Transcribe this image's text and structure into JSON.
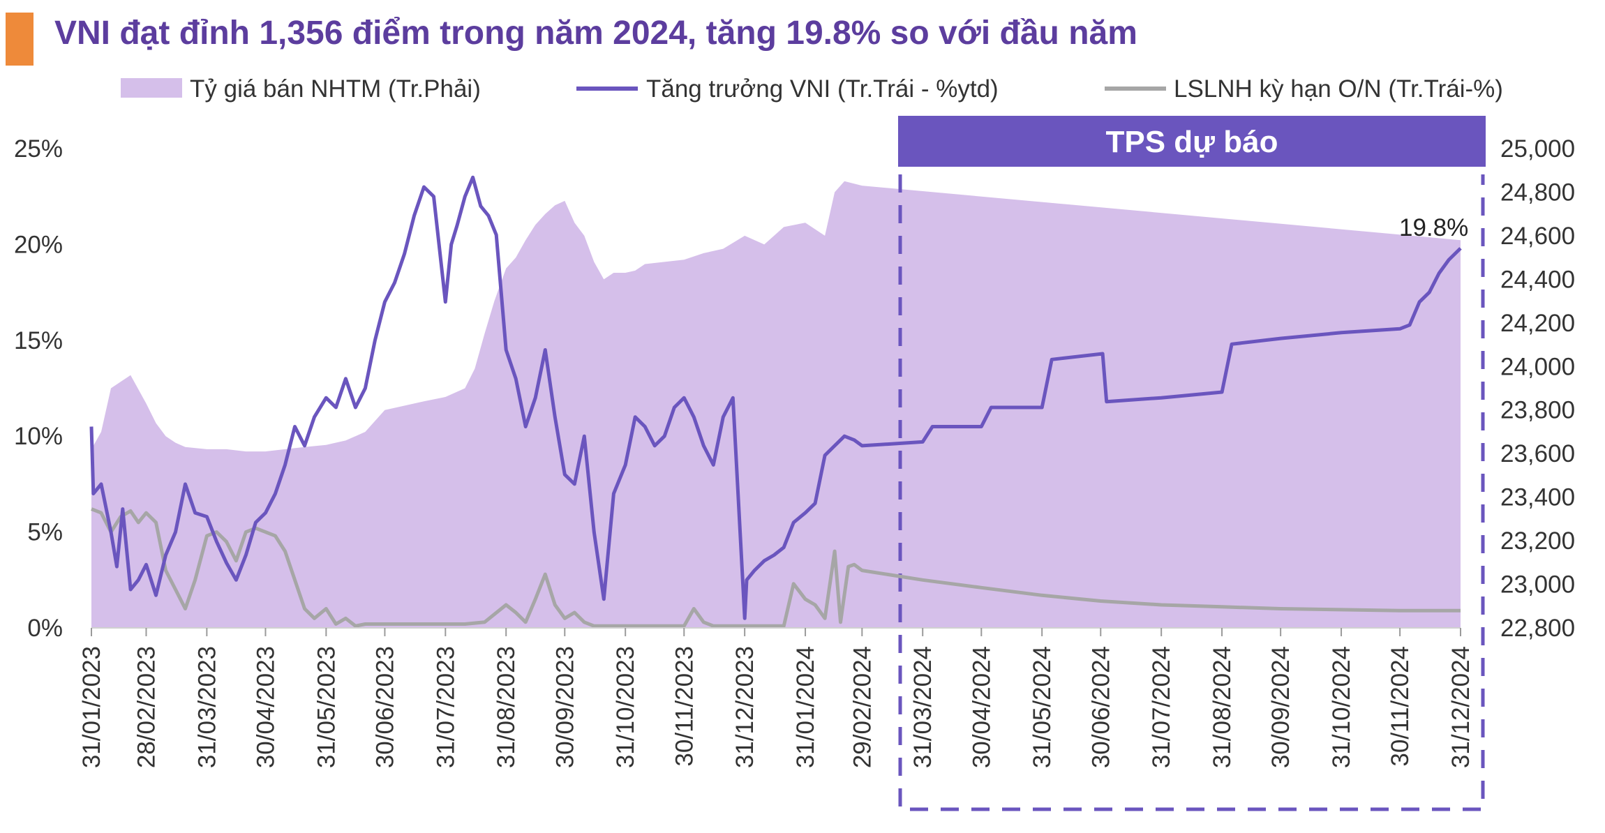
{
  "title": "VNI đạt đỉnh 1,356 điểm trong năm 2024, tăng 19.8% so với đầu năm",
  "colors": {
    "accent_bar": "#ee8a3a",
    "title": "#5c3d9e",
    "area": "#d5bfea",
    "vni_line": "#6a55be",
    "rate_line": "#a6a6a6",
    "forecast_box": "#6a55be"
  },
  "chart_data": {
    "type": "line",
    "legend": [
      {
        "name": "Tỷ giá bán NHTM (Tr.Phải)",
        "style": "area"
      },
      {
        "name": "Tăng trưởng VNI (Tr.Trái - %ytd)",
        "style": "line"
      },
      {
        "name": "LSLNH kỳ hạn O/N (Tr.Trái-%)",
        "style": "line"
      }
    ],
    "forecast_label": "TPS dự báo",
    "forecast_start": "15/02/2024",
    "annotation": "19.8%",
    "left_axis": {
      "ticks": [
        "0%",
        "5%",
        "10%",
        "15%",
        "20%",
        "25%"
      ],
      "values": [
        0,
        5,
        10,
        15,
        20,
        25
      ],
      "ylim": [
        0,
        25
      ]
    },
    "right_axis": {
      "ticks": [
        "22,800",
        "23,000",
        "23,200",
        "23,400",
        "23,600",
        "23,800",
        "24,000",
        "24,200",
        "24,400",
        "24,600",
        "24,800",
        "25,000"
      ],
      "values": [
        22800,
        23000,
        23200,
        23400,
        23600,
        23800,
        24000,
        24200,
        24400,
        24600,
        24800,
        25000
      ],
      "ylim": [
        22800,
        25000
      ]
    },
    "x_ticks": [
      "31/01/2023",
      "28/02/2023",
      "31/03/2023",
      "30/04/2023",
      "31/05/2023",
      "30/06/2023",
      "31/07/2023",
      "31/08/2023",
      "30/09/2023",
      "31/10/2023",
      "30/11/2023",
      "31/12/2023",
      "31/01/2024",
      "29/02/2024",
      "31/03/2024",
      "30/04/2024",
      "31/05/2024",
      "30/06/2024",
      "31/07/2024",
      "31/08/2024",
      "30/09/2024",
      "31/10/2024",
      "30/11/2024",
      "31/12/2024"
    ],
    "series": [
      {
        "name": "Tỷ giá bán NHTM (Tr.Phải)",
        "axis": "right",
        "x": [
          "31/01/2023",
          "05/02/2023",
          "10/02/2023",
          "15/02/2023",
          "20/02/2023",
          "28/02/2023",
          "05/03/2023",
          "10/03/2023",
          "15/03/2023",
          "20/03/2023",
          "31/03/2023",
          "10/04/2023",
          "20/04/2023",
          "30/04/2023",
          "10/05/2023",
          "20/05/2023",
          "31/05/2023",
          "10/06/2023",
          "20/06/2023",
          "30/06/2023",
          "10/07/2023",
          "20/07/2023",
          "31/07/2023",
          "10/08/2023",
          "15/08/2023",
          "20/08/2023",
          "25/08/2023",
          "31/08/2023",
          "05/09/2023",
          "10/09/2023",
          "15/09/2023",
          "20/09/2023",
          "25/09/2023",
          "30/09/2023",
          "05/10/2023",
          "10/10/2023",
          "15/10/2023",
          "20/10/2023",
          "25/10/2023",
          "31/10/2023",
          "05/11/2023",
          "10/11/2023",
          "20/11/2023",
          "30/11/2023",
          "10/12/2023",
          "20/12/2023",
          "31/12/2023",
          "10/01/2024",
          "20/01/2024",
          "31/01/2024",
          "10/02/2024",
          "15/02/2024",
          "20/02/2024",
          "29/02/2024",
          "31/12/2024"
        ],
        "values": [
          23620,
          23700,
          23900,
          23930,
          23960,
          23830,
          23740,
          23680,
          23650,
          23630,
          23620,
          23620,
          23610,
          23610,
          23620,
          23630,
          23640,
          23660,
          23700,
          23800,
          23820,
          23840,
          23860,
          23900,
          23990,
          24150,
          24300,
          24450,
          24500,
          24580,
          24650,
          24700,
          24740,
          24760,
          24660,
          24600,
          24480,
          24400,
          24430,
          24430,
          24440,
          24470,
          24480,
          24490,
          24520,
          24540,
          24600,
          24560,
          24640,
          24660,
          24600,
          24800,
          24850,
          24830,
          24580
        ]
      },
      {
        "name": "Tăng trưởng VNI (Tr.Trái - %ytd)",
        "axis": "left",
        "x": [
          "31/01/2023",
          "01/02/2023",
          "05/02/2023",
          "10/02/2023",
          "13/02/2023",
          "16/02/2023",
          "20/02/2023",
          "24/02/2023",
          "28/02/2023",
          "05/03/2023",
          "10/03/2023",
          "15/03/2023",
          "20/03/2023",
          "25/03/2023",
          "31/03/2023",
          "05/04/2023",
          "10/04/2023",
          "15/04/2023",
          "20/04/2023",
          "25/04/2023",
          "30/04/2023",
          "05/05/2023",
          "10/05/2023",
          "15/05/2023",
          "20/05/2023",
          "25/05/2023",
          "31/05/2023",
          "05/06/2023",
          "10/06/2023",
          "15/06/2023",
          "20/06/2023",
          "25/06/2023",
          "30/06/2023",
          "05/07/2023",
          "10/07/2023",
          "15/07/2023",
          "20/07/2023",
          "25/07/2023",
          "31/07/2023",
          "03/08/2023",
          "06/08/2023",
          "10/08/2023",
          "14/08/2023",
          "18/08/2023",
          "22/08/2023",
          "26/08/2023",
          "31/08/2023",
          "05/09/2023",
          "10/09/2023",
          "15/09/2023",
          "20/09/2023",
          "25/09/2023",
          "30/09/2023",
          "05/10/2023",
          "10/10/2023",
          "15/10/2023",
          "20/10/2023",
          "25/10/2023",
          "31/10/2023",
          "05/11/2023",
          "10/11/2023",
          "15/11/2023",
          "20/11/2023",
          "25/11/2023",
          "30/11/2023",
          "05/12/2023",
          "10/12/2023",
          "15/12/2023",
          "20/12/2023",
          "25/12/2023",
          "31/12/2023",
          "01/01/2024",
          "05/01/2024",
          "10/01/2024",
          "15/01/2024",
          "20/01/2024",
          "25/01/2024",
          "31/01/2024",
          "05/02/2024",
          "10/02/2024",
          "15/02/2024",
          "20/02/2024",
          "25/02/2024",
          "29/02/2024",
          "31/03/2024",
          "05/04/2024",
          "30/04/2024",
          "05/05/2024",
          "31/05/2024",
          "05/06/2024",
          "01/07/2024",
          "03/07/2024",
          "31/07/2024",
          "31/08/2024",
          "05/09/2024",
          "30/09/2024",
          "31/10/2024",
          "30/11/2024",
          "05/12/2024",
          "10/12/2024",
          "15/12/2024",
          "20/12/2024",
          "25/12/2024",
          "31/12/2024"
        ],
        "values": [
          10.5,
          7.0,
          7.5,
          5.0,
          3.2,
          6.2,
          2.0,
          2.5,
          3.3,
          1.7,
          3.8,
          5.0,
          7.5,
          6.0,
          5.8,
          4.5,
          3.4,
          2.5,
          3.8,
          5.5,
          6.0,
          7.0,
          8.5,
          10.5,
          9.5,
          11.0,
          12.0,
          11.5,
          13.0,
          11.5,
          12.5,
          15.0,
          17.0,
          18.0,
          19.5,
          21.5,
          23.0,
          22.5,
          17.0,
          20.0,
          21.0,
          22.5,
          23.5,
          22.0,
          21.5,
          20.5,
          14.5,
          13.0,
          10.5,
          12.0,
          14.5,
          11.0,
          8.0,
          7.5,
          10.0,
          5.0,
          1.5,
          7.0,
          8.5,
          11.0,
          10.5,
          9.5,
          10.0,
          11.5,
          12.0,
          11.0,
          9.5,
          8.5,
          11.0,
          12.0,
          0.5,
          2.5,
          3.0,
          3.5,
          3.8,
          4.2,
          5.5,
          6.0,
          6.5,
          9.0,
          9.5,
          10.0,
          9.8,
          9.5,
          9.7,
          10.5,
          10.5,
          11.5,
          11.5,
          14.0,
          14.3,
          11.8,
          12.0,
          12.3,
          14.8,
          15.1,
          15.4,
          15.6,
          15.8,
          17.0,
          17.5,
          18.5,
          19.2,
          19.8
        ]
      },
      {
        "name": "LSLNH kỳ hạn O/N (Tr.Trái-%)",
        "axis": "left",
        "x": [
          "31/01/2023",
          "05/02/2023",
          "10/02/2023",
          "15/02/2023",
          "20/02/2023",
          "24/02/2023",
          "28/02/2023",
          "05/03/2023",
          "10/03/2023",
          "15/03/2023",
          "20/03/2023",
          "25/03/2023",
          "31/03/2023",
          "05/04/2023",
          "10/04/2023",
          "15/04/2023",
          "20/04/2023",
          "25/04/2023",
          "30/04/2023",
          "05/05/2023",
          "10/05/2023",
          "15/05/2023",
          "20/05/2023",
          "25/05/2023",
          "31/05/2023",
          "05/06/2023",
          "10/06/2023",
          "15/06/2023",
          "20/06/2023",
          "25/06/2023",
          "30/06/2023",
          "10/07/2023",
          "20/07/2023",
          "31/07/2023",
          "10/08/2023",
          "20/08/2023",
          "31/08/2023",
          "05/09/2023",
          "10/09/2023",
          "15/09/2023",
          "20/09/2023",
          "25/09/2023",
          "30/09/2023",
          "05/10/2023",
          "10/10/2023",
          "15/10/2023",
          "20/10/2023",
          "25/10/2023",
          "31/10/2023",
          "10/11/2023",
          "20/11/2023",
          "30/11/2023",
          "05/12/2023",
          "10/12/2023",
          "15/12/2023",
          "20/12/2023",
          "25/12/2023",
          "31/12/2023",
          "10/01/2024",
          "20/01/2024",
          "25/01/2024",
          "31/01/2024",
          "05/02/2024",
          "10/02/2024",
          "15/02/2024",
          "18/02/2024",
          "22/02/2024",
          "25/02/2024",
          "29/02/2024",
          "31/03/2024",
          "30/04/2024",
          "31/05/2024",
          "30/06/2024",
          "31/07/2024",
          "31/08/2024",
          "30/09/2024",
          "31/10/2024",
          "30/11/2024",
          "31/12/2024"
        ],
        "values": [
          6.2,
          6.0,
          5.0,
          5.8,
          6.1,
          5.5,
          6.0,
          5.5,
          3.0,
          2.0,
          1.0,
          2.5,
          4.8,
          5.0,
          4.5,
          3.5,
          5.0,
          5.2,
          5.0,
          4.8,
          4.0,
          2.5,
          1.0,
          0.5,
          1.0,
          0.2,
          0.5,
          0.1,
          0.2,
          0.2,
          0.2,
          0.2,
          0.2,
          0.2,
          0.2,
          0.3,
          1.2,
          0.8,
          0.3,
          1.5,
          2.8,
          1.2,
          0.5,
          0.8,
          0.3,
          0.1,
          0.1,
          0.1,
          0.1,
          0.1,
          0.1,
          0.1,
          1.0,
          0.3,
          0.1,
          0.1,
          0.1,
          0.1,
          0.1,
          0.1,
          2.3,
          1.5,
          1.2,
          0.5,
          4.0,
          0.3,
          3.2,
          3.3,
          3.0,
          2.5,
          2.1,
          1.7,
          1.4,
          1.2,
          1.1,
          1.0,
          0.95,
          0.9,
          0.9
        ]
      }
    ]
  }
}
